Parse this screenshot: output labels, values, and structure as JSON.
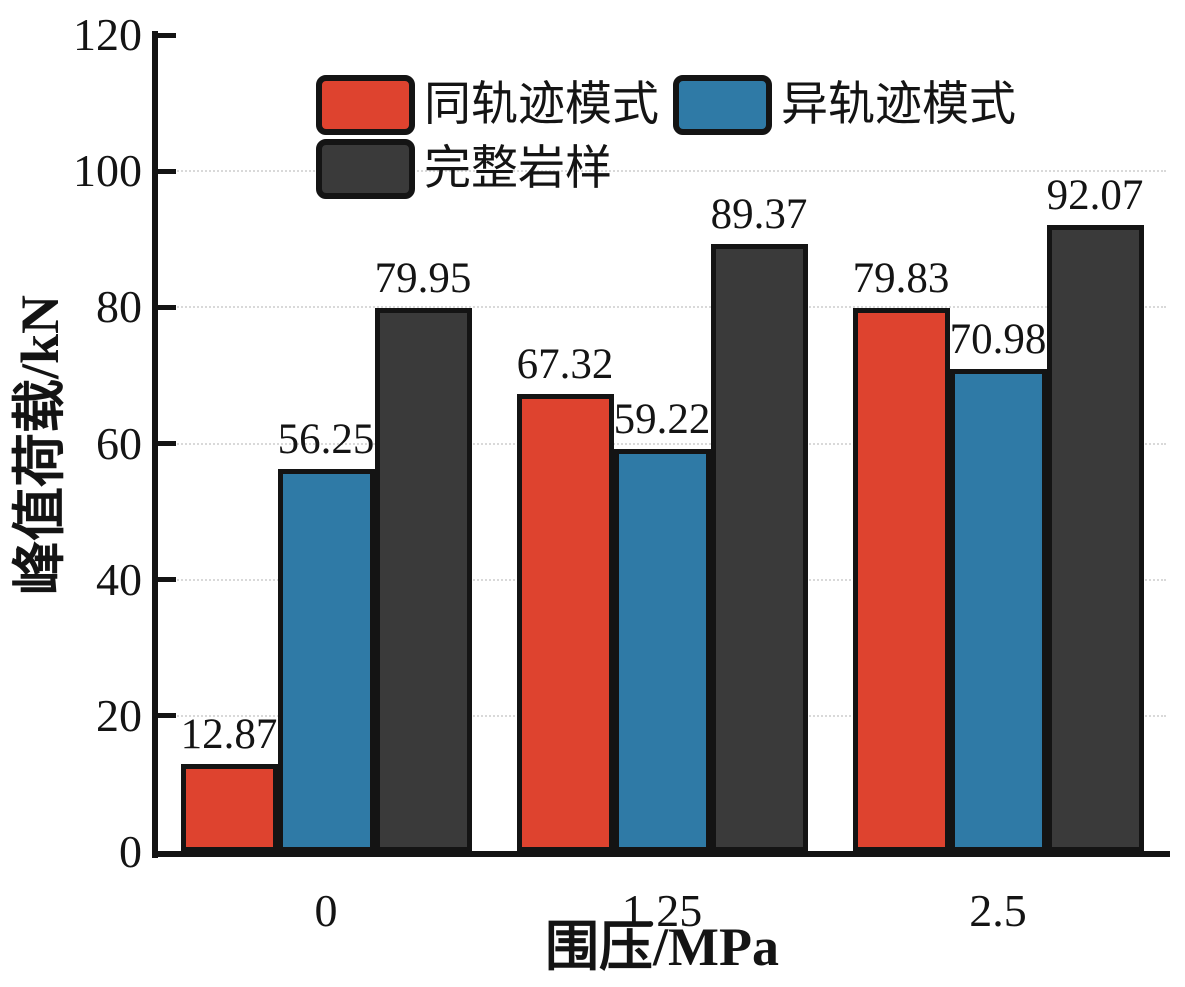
{
  "chart_data": {
    "type": "bar",
    "title": "",
    "xlabel": "围压/MPa",
    "ylabel": "峰值荷载/kN",
    "categories": [
      "0",
      "1.25",
      "2.5"
    ],
    "series": [
      {
        "name": "同轨迹模式",
        "color": "#DE432F",
        "values": [
          12.87,
          67.32,
          79.83
        ]
      },
      {
        "name": "异轨迹模式",
        "color": "#2F7AA6",
        "values": [
          56.25,
          59.22,
          70.98
        ]
      },
      {
        "name": "完整岩样",
        "color": "#3A3A3A",
        "values": [
          79.95,
          89.37,
          92.07
        ]
      }
    ],
    "ylim": [
      0,
      120
    ],
    "yticks": [
      0,
      20,
      40,
      60,
      80,
      100,
      120
    ],
    "bar_border_color": "#141414",
    "grid": {
      "horizontal": true,
      "style": "dotted",
      "color": "#d9d9d9",
      "at": [
        20,
        40,
        60,
        80,
        100
      ]
    },
    "legend_position": "top-left-inside",
    "value_labels": true
  }
}
